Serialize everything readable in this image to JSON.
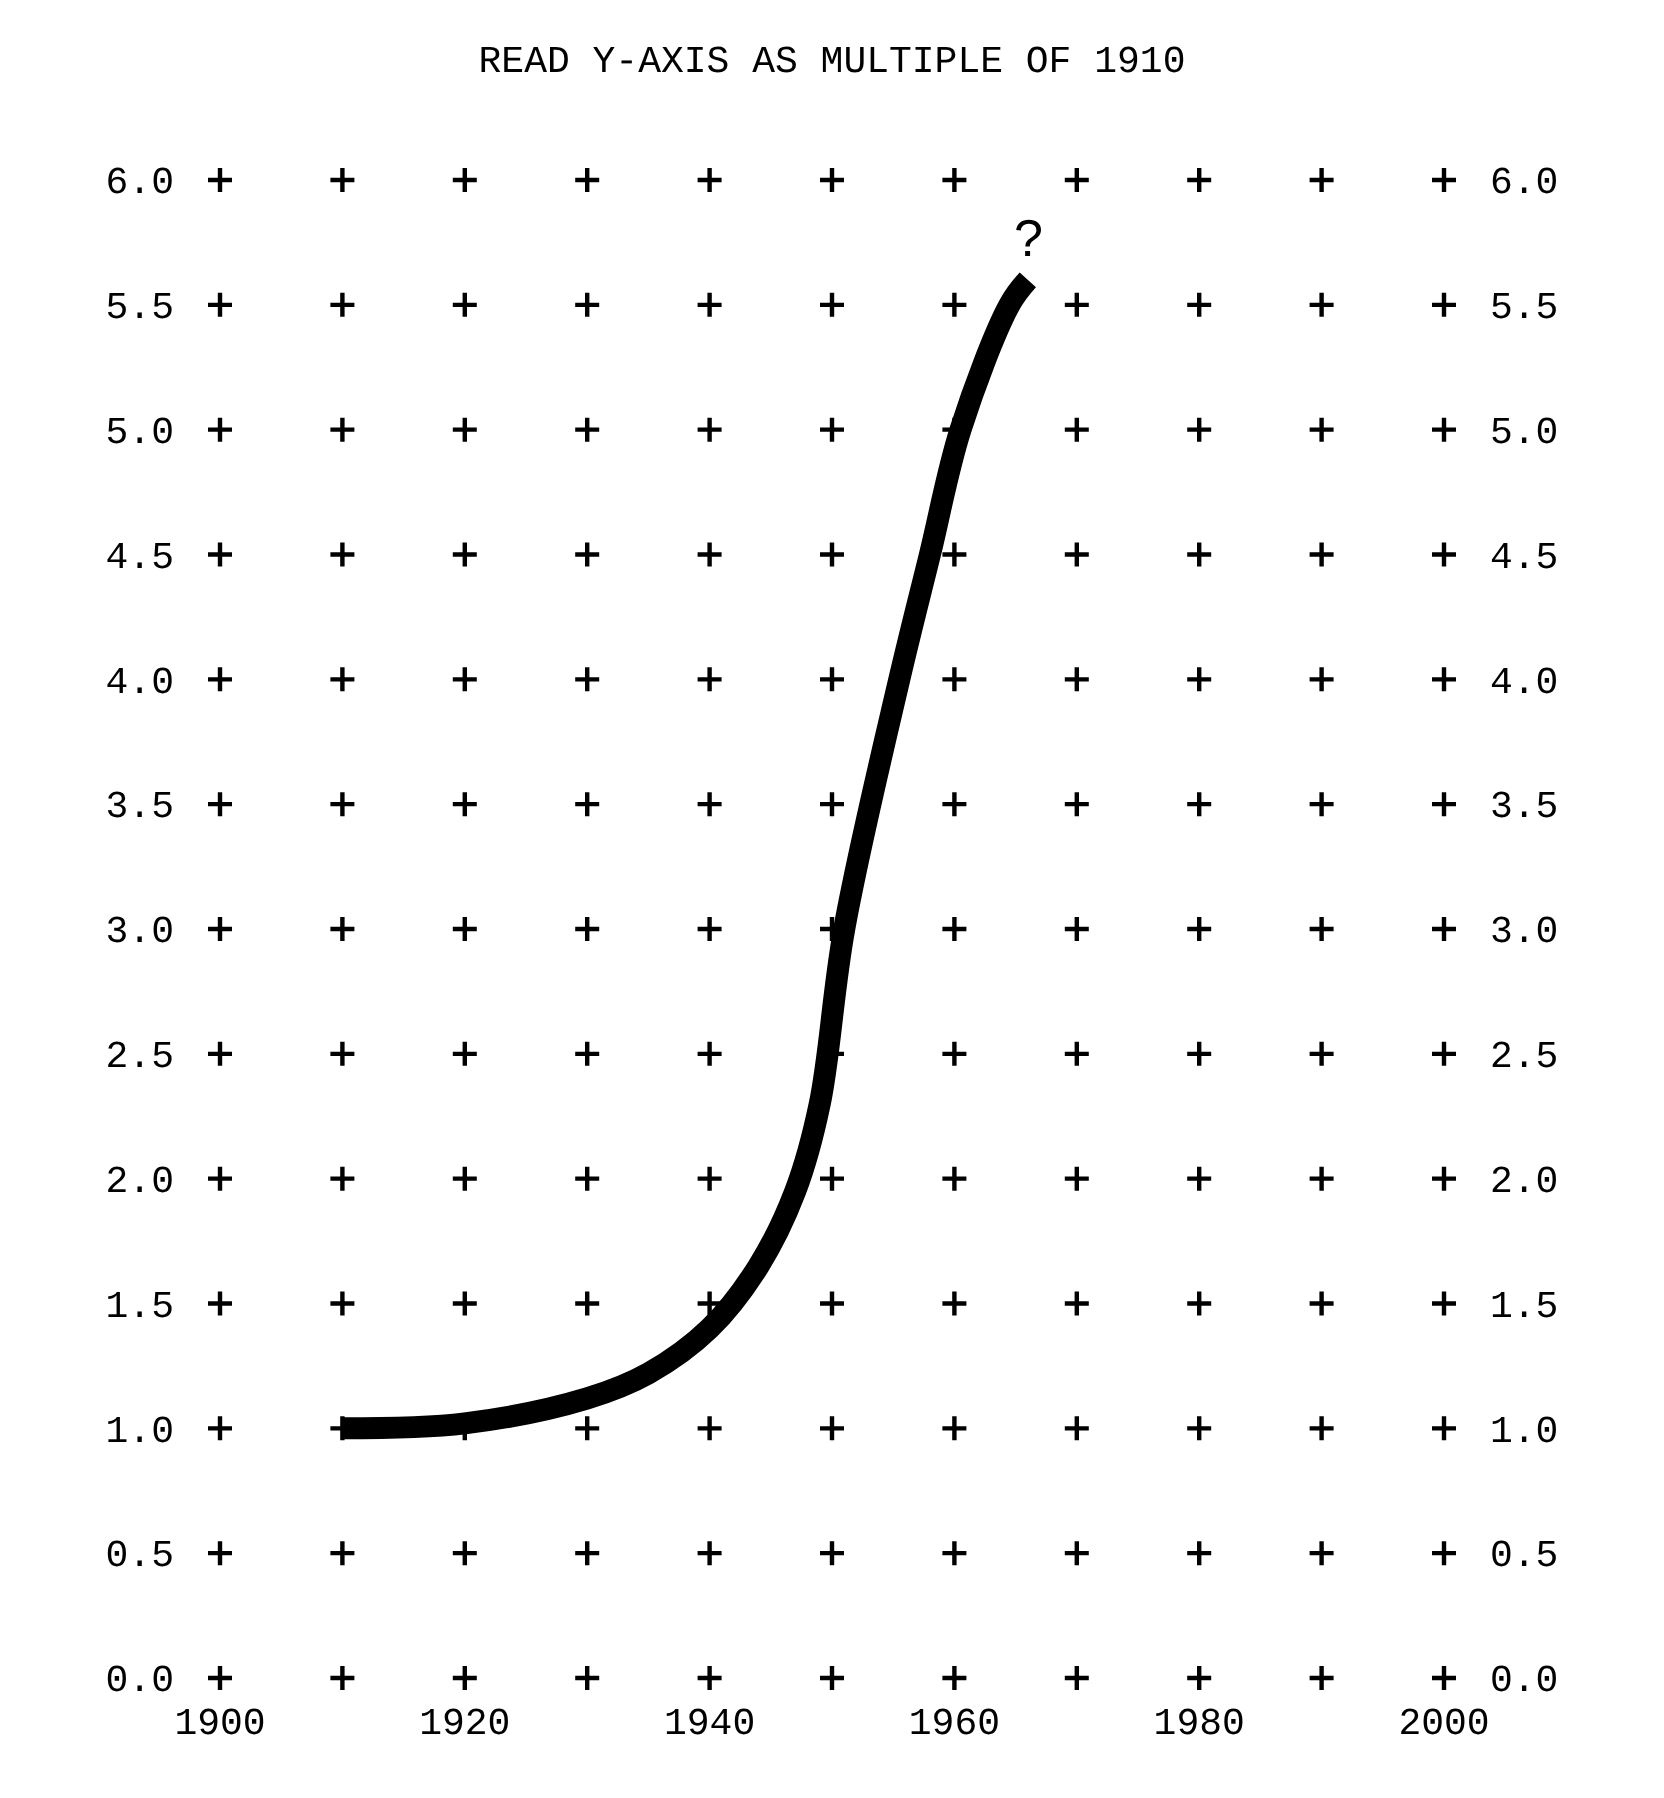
{
  "chart_data": {
    "type": "line",
    "title": "READ Y-AXIS AS MULTIPLE OF 1910",
    "x": [
      1910,
      1920,
      1930,
      1935,
      1940,
      1944,
      1947,
      1949,
      1951,
      1955.5,
      1958,
      1960.5,
      1964.5,
      1966
    ],
    "series": [
      {
        "color": "#000000",
        "values": [
          1.0,
          1.02,
          1.12,
          1.22,
          1.4,
          1.65,
          1.95,
          2.3,
          3.0,
          4.0,
          4.5,
          5.0,
          5.5,
          5.6
        ]
      }
    ],
    "xlim": [
      1900,
      2000
    ],
    "ylim": [
      0,
      6
    ],
    "xticks": [
      1900,
      {
        "value": 1910,
        "label": null
      },
      1920,
      {
        "value": 1930,
        "label": null
      },
      1940,
      {
        "value": 1950,
        "label": null
      },
      1960,
      {
        "value": 1970,
        "label": null
      },
      1980,
      {
        "value": 1990,
        "label": null
      },
      2000
    ],
    "yticks": [
      {
        "value": 0,
        "label": "0.0"
      },
      {
        "value": 0.5,
        "label": "0.5"
      },
      {
        "value": 1,
        "label": "1.0"
      },
      {
        "value": 1.5,
        "label": "1.5"
      },
      {
        "value": 2,
        "label": "2.0"
      },
      {
        "value": 2.5,
        "label": "2.5"
      },
      {
        "value": 3,
        "label": "3.0"
      },
      {
        "value": 3.5,
        "label": "3.5"
      },
      {
        "value": 4,
        "label": "4.0"
      },
      {
        "value": 4.5,
        "label": "4.5"
      },
      {
        "value": 5,
        "label": "5.0"
      },
      {
        "value": 5.5,
        "label": "5.5"
      },
      {
        "value": 6,
        "label": "6.0"
      }
    ],
    "y2lim": [
      0,
      6
    ],
    "y2ticks": [
      {
        "value": 0,
        "label": "0.0"
      },
      {
        "value": 0.5,
        "label": "0.5"
      },
      {
        "value": 1,
        "label": "1.0"
      },
      {
        "value": 1.5,
        "label": "1.5"
      },
      {
        "value": 2,
        "label": "2.0"
      },
      {
        "value": 2.5,
        "label": "2.5"
      },
      {
        "value": 3,
        "label": "3.0"
      },
      {
        "value": 3.5,
        "label": "3.5"
      },
      {
        "value": 4,
        "label": "4.0"
      },
      {
        "value": 4.5,
        "label": "4.5"
      },
      {
        "value": 5,
        "label": "5.0"
      },
      {
        "value": 5.5,
        "label": "5.5"
      },
      {
        "value": 6,
        "label": "6.0"
      }
    ],
    "annotations": [
      "?"
    ],
    "grid": true,
    "marker": "none",
    "line_style": "solid"
  }
}
